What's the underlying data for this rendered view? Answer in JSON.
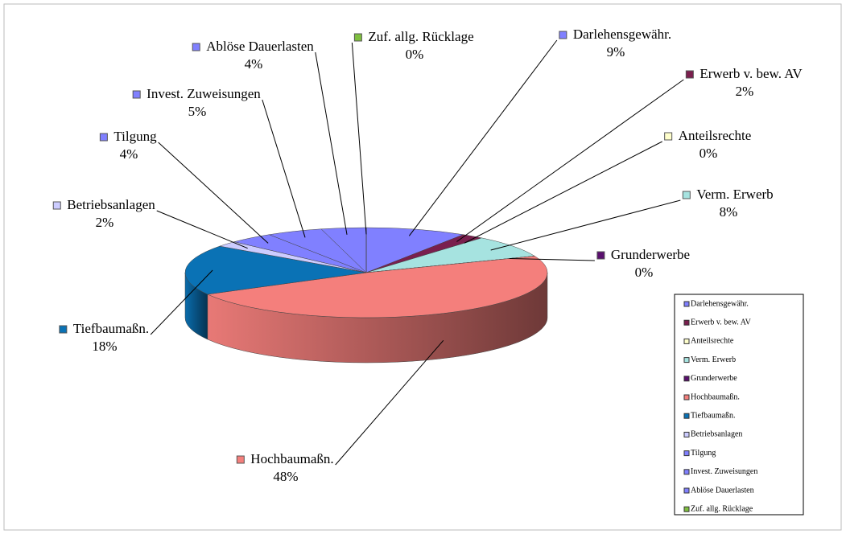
{
  "chart_data": {
    "type": "pie3d",
    "categories": [
      "Darlehensgewähr.",
      "Erwerb v. bew. AV",
      "Anteilsrechte",
      "Verm. Erwerb",
      "Grunderwerbe",
      "Hochbaumaßn.",
      "Tiefbaumaßn.",
      "Betriebsanlagen",
      "Tilgung",
      "Invest. Zuweisungen",
      "Ablöse Dauerlasten",
      "Zuf. allg. Rücklage"
    ],
    "values": [
      9,
      2,
      0,
      8,
      0,
      48,
      18,
      2,
      4,
      5,
      4,
      0
    ],
    "value_labels": [
      "9%",
      "2%",
      "0%",
      "8%",
      "0%",
      "48%",
      "18%",
      "2%",
      "4%",
      "5%",
      "4%",
      "0%"
    ],
    "colors": [
      "#8080ff",
      "#7a1f4e",
      "#ffffcc",
      "#a6e3e0",
      "#5a0f6e",
      "#f47f7c",
      "#0a72b5",
      "#ccccff",
      "#8080ff",
      "#8080ff",
      "#8080ff",
      "#7fbf3f"
    ],
    "legend": "bottom-right"
  }
}
